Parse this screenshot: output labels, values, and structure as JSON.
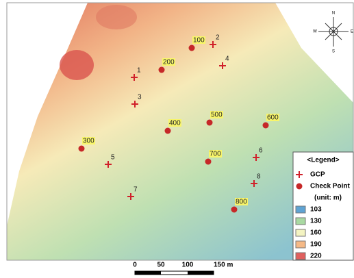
{
  "compass": {
    "north": "N",
    "south": "S",
    "west": "W",
    "east": "E"
  },
  "gcps": [
    "1",
    "2",
    "3",
    "4",
    "5",
    "6",
    "7",
    "8"
  ],
  "check_points": [
    "100",
    "200",
    "300",
    "400",
    "500",
    "600",
    "700",
    "800"
  ],
  "legend": {
    "title": "<Legend>",
    "gcp": "GCP",
    "check_point": "Check Point",
    "unit": "(unit: m)",
    "classes": [
      {
        "label": "103",
        "color": "#5fa3d3"
      },
      {
        "label": "130",
        "color": "#a9d9a2"
      },
      {
        "label": "160",
        "color": "#f4f4c2"
      },
      {
        "label": "190",
        "color": "#f5b986"
      },
      {
        "label": "220",
        "color": "#e0605e"
      }
    ]
  },
  "scale_bar": {
    "labels": [
      "0",
      "50",
      "100",
      "150 m"
    ]
  }
}
